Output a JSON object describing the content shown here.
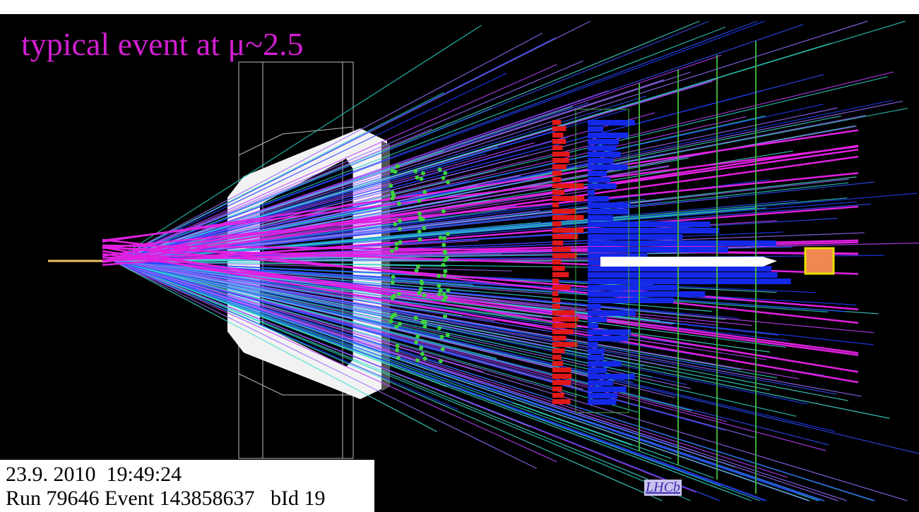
{
  "headline": "typical event at μ~2.5",
  "info": {
    "timestamp": "23.9. 2010  19:49:24",
    "run": "Run 79646 Event 143858637   bId 19"
  },
  "logo": "LHCb"
}
